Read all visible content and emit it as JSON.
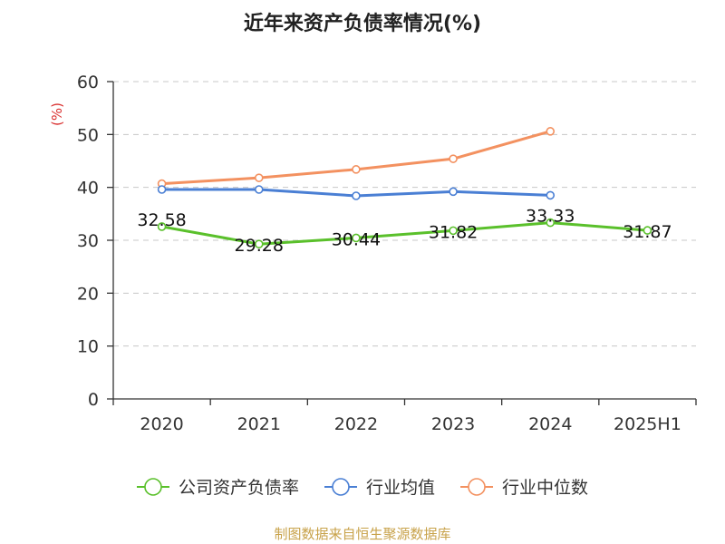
{
  "chart_data": {
    "type": "line",
    "title": "近年来资产负债率情况(%)",
    "ylabel": "(%)",
    "ylim": [
      0,
      60
    ],
    "yticks": [
      0,
      10,
      20,
      30,
      40,
      50,
      60
    ],
    "grid": true,
    "legend_position": "bottom",
    "categories": [
      "2020",
      "2021",
      "2022",
      "2023",
      "2024",
      "2025H1"
    ],
    "series": [
      {
        "name": "公司资产负债率",
        "color": "#5ac02b",
        "labels": true,
        "values": [
          32.58,
          29.28,
          30.44,
          31.82,
          33.33,
          31.87
        ]
      },
      {
        "name": "行业均值",
        "color": "#4a7fd4",
        "labels": false,
        "values": [
          39.6,
          39.6,
          38.4,
          39.2,
          38.5,
          null
        ]
      },
      {
        "name": "行业中位数",
        "color": "#f39160",
        "labels": false,
        "values": [
          40.7,
          41.8,
          43.4,
          45.4,
          50.6,
          null
        ]
      }
    ]
  },
  "source": "制图数据来自恒生聚源数据库"
}
